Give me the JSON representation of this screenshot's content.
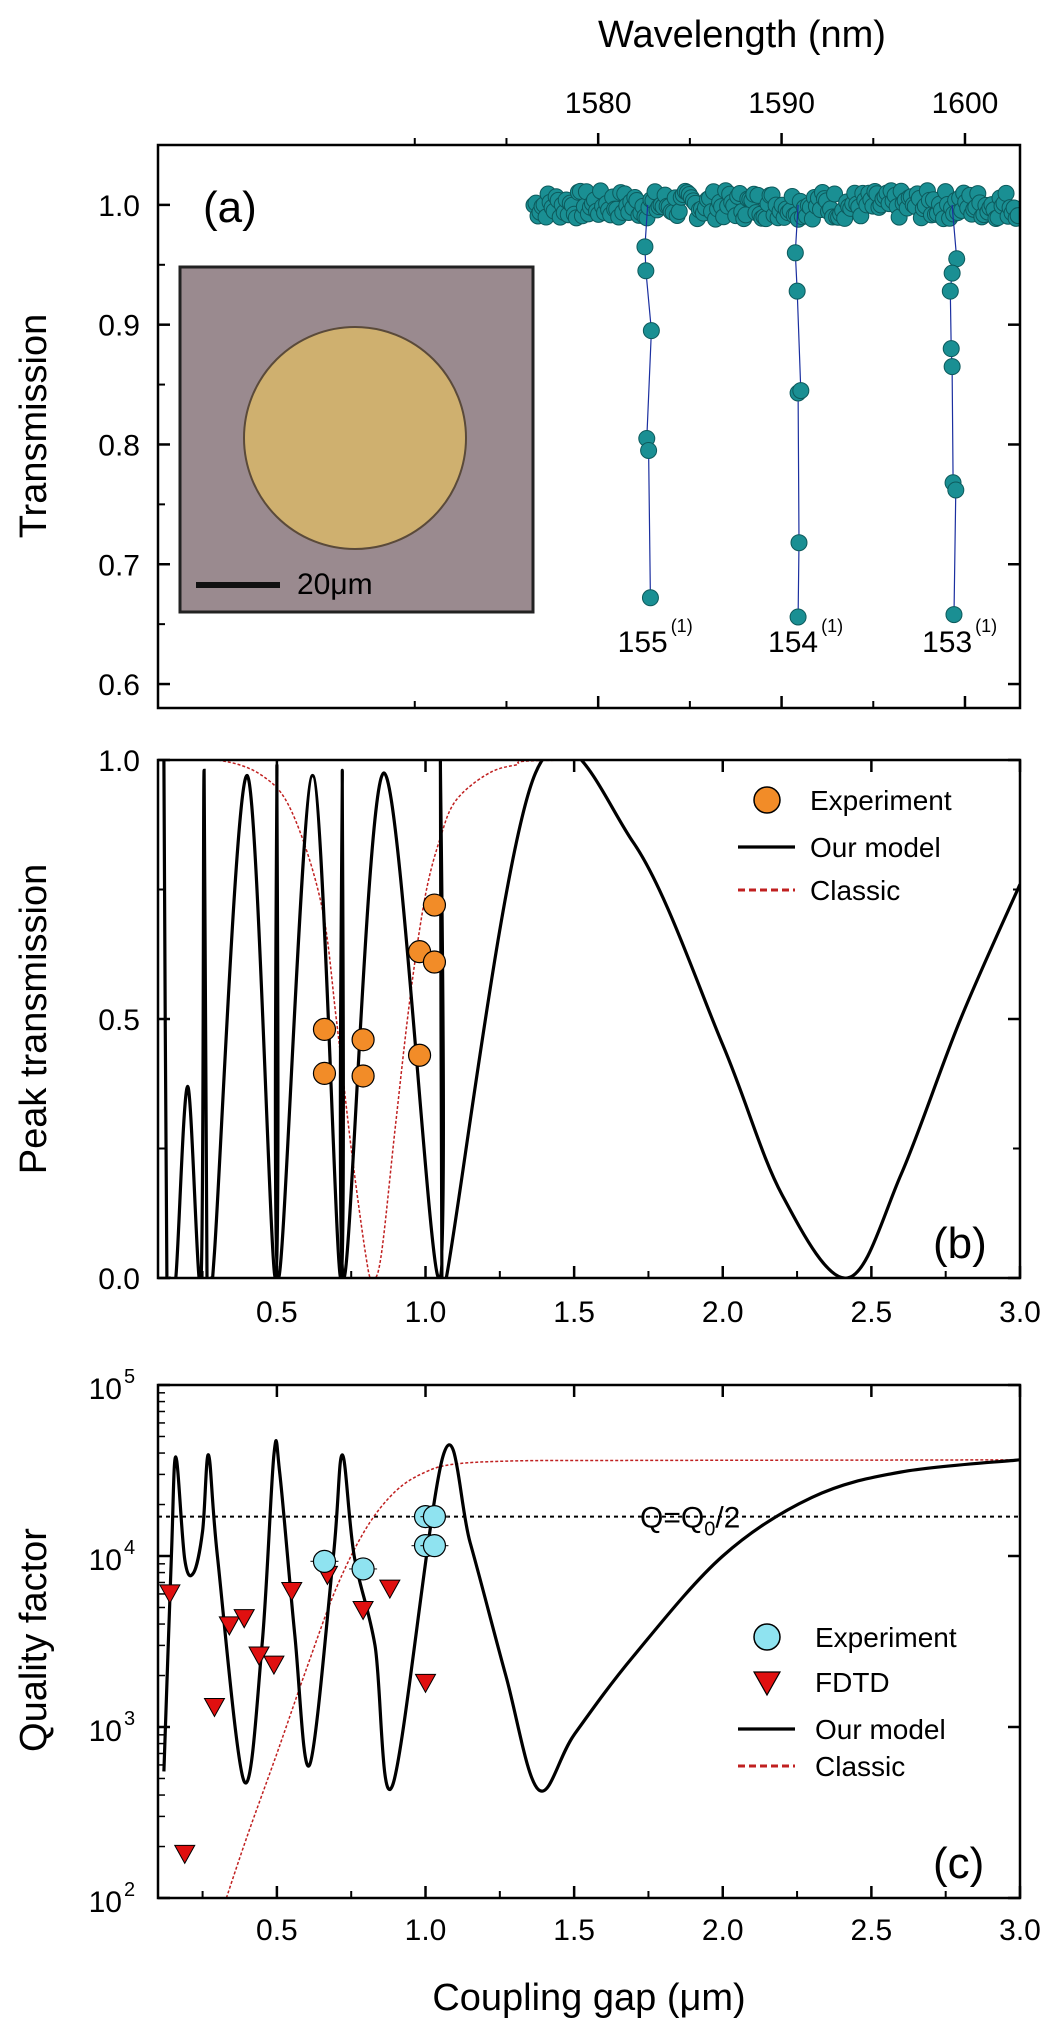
{
  "colors": {
    "experiment_a": "#1a8f93",
    "experiment_a_line": "#1b2fa0",
    "experiment_b": "#f28c28",
    "experiment_c": "#8fe3f0",
    "fdtd": "#e01010",
    "model": "#000000",
    "classic": "#c02020",
    "inset_bg": "#9a8a8f",
    "inset_disk": "#cfb06f"
  },
  "chart_data": [
    {
      "id": "a",
      "type": "scatter",
      "panel_label": "(a)",
      "title": "",
      "xlabel": "Wavelength (nm)",
      "ylabel": "Transmission",
      "x_axis_position": "top",
      "xlim": [
        1556,
        1603
      ],
      "ylim": [
        0.58,
        1.05
      ],
      "xticks": [
        1580,
        1590,
        1600
      ],
      "yticks": [
        0.6,
        0.7,
        0.8,
        0.9,
        1.0
      ],
      "ytick_labels": [
        "0.6",
        "0.7",
        "0.8",
        "0.9",
        "1.0"
      ],
      "baseline": {
        "level": 1.0,
        "x_start": 1576.5,
        "x_end": 1603,
        "ripple": 0.012
      },
      "series": [
        {
          "name": "resonance 155",
          "label": "155",
          "label_sup": "(1)",
          "center": 1582.7,
          "points": [
            {
              "x": 1582.55,
              "y": 0.965
            },
            {
              "x": 1582.6,
              "y": 0.945
            },
            {
              "x": 1582.9,
              "y": 0.895
            },
            {
              "x": 1582.65,
              "y": 0.805
            },
            {
              "x": 1582.75,
              "y": 0.795
            },
            {
              "x": 1582.85,
              "y": 0.672
            }
          ]
        },
        {
          "name": "resonance 154",
          "label": "154",
          "label_sup": "(1)",
          "center": 1590.9,
          "points": [
            {
              "x": 1590.75,
              "y": 0.96
            },
            {
              "x": 1590.85,
              "y": 0.928
            },
            {
              "x": 1590.9,
              "y": 0.843
            },
            {
              "x": 1591.05,
              "y": 0.845
            },
            {
              "x": 1590.95,
              "y": 0.718
            },
            {
              "x": 1590.9,
              "y": 0.656
            }
          ]
        },
        {
          "name": "resonance 153",
          "label": "153",
          "label_sup": "(1)",
          "center": 1599.3,
          "points": [
            {
              "x": 1599.55,
              "y": 0.955
            },
            {
              "x": 1599.3,
              "y": 0.943
            },
            {
              "x": 1599.2,
              "y": 0.928
            },
            {
              "x": 1599.25,
              "y": 0.88
            },
            {
              "x": 1599.3,
              "y": 0.865
            },
            {
              "x": 1599.35,
              "y": 0.768
            },
            {
              "x": 1599.5,
              "y": 0.762
            },
            {
              "x": 1599.4,
              "y": 0.658
            }
          ]
        }
      ],
      "inset": {
        "scale_bar_label": "20μm"
      }
    },
    {
      "id": "b",
      "type": "line",
      "panel_label": "(b)",
      "title": "",
      "xlabel": "",
      "ylabel": "Peak transmission",
      "xlim": [
        0.1,
        3.0
      ],
      "ylim": [
        0.0,
        1.0
      ],
      "xticks": [
        0.5,
        1.0,
        1.5,
        2.0,
        2.5,
        3.0
      ],
      "xtick_labels": [
        "0.5",
        "1.0",
        "1.5",
        "2.0",
        "2.5",
        "3.0"
      ],
      "yticks": [
        0.0,
        0.5,
        1.0
      ],
      "ytick_labels": [
        "0.0",
        "0.5",
        "1.0"
      ],
      "legend_position": "top-right",
      "legend": [
        {
          "name": "Experiment",
          "kind": "marker-circle"
        },
        {
          "name": "Our model",
          "kind": "solid-line"
        },
        {
          "name": "Classic",
          "kind": "dashed-line"
        }
      ],
      "series": [
        {
          "name": "Experiment",
          "points": [
            {
              "x": 0.66,
              "y": 0.48
            },
            {
              "x": 0.66,
              "y": 0.395
            },
            {
              "x": 0.79,
              "y": 0.46
            },
            {
              "x": 0.79,
              "y": 0.39
            },
            {
              "x": 0.98,
              "y": 0.43
            },
            {
              "x": 0.98,
              "y": 0.63
            },
            {
              "x": 1.03,
              "y": 0.72
            },
            {
              "x": 1.03,
              "y": 0.61
            }
          ],
          "yerr": 0.02
        },
        {
          "name": "Our model",
          "x": [
            0.12,
            0.13,
            0.14,
            0.16,
            0.2,
            0.245,
            0.255,
            0.265,
            0.28,
            0.29,
            0.4,
            0.495,
            0.5,
            0.505,
            0.62,
            0.715,
            0.72,
            0.725,
            0.86,
            1.045,
            1.05,
            1.055,
            1.07,
            1.37,
            1.7,
            2.0,
            2.2,
            2.42,
            2.6,
            2.8,
            3.0
          ],
          "y": [
            1.0,
            0.0,
            0.0,
            0.0,
            0.37,
            0.0,
            0.98,
            0.0,
            0.0,
            0.05,
            0.97,
            0.0,
            0.99,
            0.0,
            0.97,
            0.0,
            0.98,
            0.0,
            0.975,
            0.0,
            1.0,
            0.0,
            0.0,
            0.975,
            0.84,
            0.45,
            0.16,
            0.0,
            0.2,
            0.5,
            0.76
          ]
        },
        {
          "name": "Classic",
          "x": [
            0.1,
            0.3,
            0.45,
            0.55,
            0.65,
            0.7,
            0.75,
            0.8,
            0.82,
            0.85,
            0.9,
            0.95,
            1.0,
            1.05,
            1.1,
            1.2,
            1.3,
            1.5,
            3.0
          ],
          "y": [
            1.0,
            1.0,
            0.97,
            0.9,
            0.72,
            0.5,
            0.25,
            0.04,
            0.0,
            0.04,
            0.3,
            0.55,
            0.74,
            0.85,
            0.92,
            0.97,
            0.99,
            1.0,
            1.0
          ]
        }
      ]
    },
    {
      "id": "c",
      "type": "line",
      "panel_label": "(c)",
      "title": "",
      "xlabel": "Coupling gap (μm)",
      "ylabel": "Quality factor",
      "yscale": "log",
      "xlim": [
        0.1,
        3.0
      ],
      "ylim": [
        100,
        100000
      ],
      "xticks": [
        0.5,
        1.0,
        1.5,
        2.0,
        2.5,
        3.0
      ],
      "xtick_labels": [
        "0.5",
        "1.0",
        "1.5",
        "2.0",
        "2.5",
        "3.0"
      ],
      "yticks": [
        100,
        1000,
        10000,
        100000
      ],
      "ytick_labels": [
        {
          "base": "10",
          "exp": "2"
        },
        {
          "base": "10",
          "exp": "3"
        },
        {
          "base": "10",
          "exp": "4"
        },
        {
          "base": "10",
          "exp": "5"
        }
      ],
      "reference_line": {
        "y": 17000,
        "label": "Q=Q",
        "label_sub": "0",
        "label_tail": "/2"
      },
      "legend_position": "bottom-right",
      "legend": [
        {
          "name": "Experiment",
          "kind": "marker-circle"
        },
        {
          "name": "FDTD",
          "kind": "marker-triangle"
        },
        {
          "name": "Our model",
          "kind": "solid-line"
        },
        {
          "name": "Classic",
          "kind": "dashed-line"
        }
      ],
      "series": [
        {
          "name": "Experiment",
          "points": [
            {
              "x": 0.66,
              "y": 9300
            },
            {
              "x": 0.79,
              "y": 8400
            },
            {
              "x": 1.0,
              "y": 17000
            },
            {
              "x": 1.03,
              "y": 17000
            },
            {
              "x": 1.0,
              "y": 11500
            },
            {
              "x": 1.03,
              "y": 11500
            }
          ]
        },
        {
          "name": "FDTD",
          "points": [
            {
              "x": 0.14,
              "y": 6000
            },
            {
              "x": 0.19,
              "y": 180
            },
            {
              "x": 0.29,
              "y": 1300
            },
            {
              "x": 0.34,
              "y": 3900
            },
            {
              "x": 0.39,
              "y": 4300
            },
            {
              "x": 0.44,
              "y": 2600
            },
            {
              "x": 0.49,
              "y": 2300
            },
            {
              "x": 0.55,
              "y": 6200
            },
            {
              "x": 0.67,
              "y": 7700
            },
            {
              "x": 0.79,
              "y": 4800
            },
            {
              "x": 0.88,
              "y": 6400
            },
            {
              "x": 1.0,
              "y": 1800
            }
          ]
        },
        {
          "name": "Our model",
          "x": [
            0.12,
            0.145,
            0.16,
            0.19,
            0.22,
            0.25,
            0.27,
            0.3,
            0.39,
            0.45,
            0.49,
            0.51,
            0.56,
            0.61,
            0.69,
            0.72,
            0.76,
            0.83,
            0.89,
            1.06,
            1.15,
            1.27,
            1.38,
            1.5,
            1.7,
            2.0,
            2.3,
            2.6,
            3.0
          ],
          "y": [
            550,
            10000,
            38000,
            9500,
            8000,
            14000,
            39000,
            10000,
            480,
            3000,
            39000,
            30000,
            3500,
            600,
            10000,
            39000,
            10000,
            3000,
            460,
            39000,
            12000,
            2000,
            430,
            900,
            2600,
            10000,
            22000,
            31000,
            36500
          ]
        },
        {
          "name": "Classic",
          "x": [
            0.33,
            0.4,
            0.5,
            0.6,
            0.7,
            0.8,
            0.9,
            1.0,
            1.1,
            1.3,
            1.6,
            2.0,
            2.5,
            3.0
          ],
          "y": [
            100,
            230,
            700,
            2200,
            6500,
            14500,
            24000,
            31000,
            34500,
            36000,
            36200,
            36300,
            36400,
            36500
          ]
        }
      ]
    }
  ]
}
